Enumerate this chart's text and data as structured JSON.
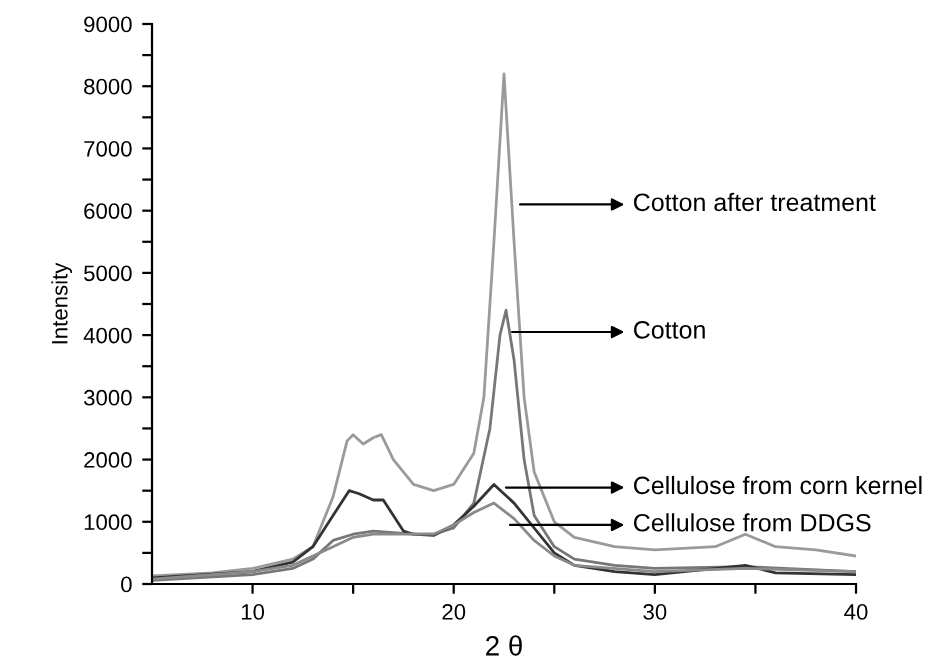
{
  "chart_data": {
    "type": "line",
    "xlabel": "2 θ",
    "ylabel": "Intensity",
    "xlim": [
      5,
      40
    ],
    "ylim": [
      0,
      9000
    ],
    "xticks": [
      10,
      {
        "value": 15,
        "label": null
      },
      20,
      {
        "value": 25,
        "label": null
      },
      30,
      {
        "value": 35,
        "label": null
      },
      40
    ],
    "yticks": [
      0,
      {
        "value": 500,
        "label": null
      },
      1000,
      {
        "value": 1500,
        "label": null
      },
      2000,
      {
        "value": 2500,
        "label": null
      },
      3000,
      {
        "value": 3500,
        "label": null
      },
      4000,
      {
        "value": 4500,
        "label": null
      },
      5000,
      {
        "value": 5500,
        "label": null
      },
      6000,
      {
        "value": 6500,
        "label": null
      },
      7000,
      {
        "value": 7500,
        "label": null
      },
      8000,
      {
        "value": 8500,
        "label": null
      },
      9000
    ],
    "grid": false,
    "marker": "none",
    "line_style": "solid",
    "series": [
      {
        "color": "#9a9a9a",
        "x": [
          5,
          8,
          10,
          12,
          13,
          14,
          14.7,
          15,
          15.5,
          16,
          16.4,
          17,
          18,
          19,
          20,
          21,
          21.5,
          22,
          22.5,
          23,
          23.5,
          24,
          25,
          26,
          28,
          30,
          33,
          34.5,
          36,
          38,
          40
        ],
        "values": [
          130,
          180,
          250,
          400,
          600,
          1400,
          2300,
          2400,
          2250,
          2350,
          2400,
          2000,
          1600,
          1500,
          1600,
          2100,
          3000,
          5500,
          8200,
          5500,
          3000,
          1800,
          1000,
          750,
          600,
          550,
          600,
          800,
          600,
          550,
          450
        ]
      },
      {
        "color": "#777777",
        "x": [
          5,
          10,
          12,
          13,
          14,
          15,
          16,
          18,
          19,
          20,
          21,
          21.8,
          22.3,
          22.6,
          23,
          23.5,
          24,
          25,
          26,
          28,
          30,
          34.5,
          40
        ],
        "values": [
          60,
          150,
          250,
          400,
          700,
          800,
          850,
          800,
          800,
          900,
          1300,
          2500,
          4000,
          4400,
          3600,
          2000,
          1100,
          600,
          400,
          300,
          250,
          280,
          200
        ]
      },
      {
        "color": "#333333",
        "x": [
          5,
          10,
          12,
          13,
          14,
          14.8,
          15.3,
          16,
          16.5,
          17,
          17.5,
          18,
          19,
          20,
          21,
          22,
          23,
          24,
          25,
          26,
          28,
          30,
          34.5,
          36,
          40
        ],
        "values": [
          100,
          200,
          350,
          600,
          1100,
          1500,
          1450,
          1350,
          1350,
          1100,
          850,
          800,
          780,
          950,
          1250,
          1600,
          1300,
          900,
          500,
          300,
          200,
          150,
          300,
          180,
          150
        ]
      },
      {
        "color": "#8a8a8a",
        "x": [
          5,
          10,
          12,
          13,
          14,
          15,
          16,
          17,
          18,
          19,
          20,
          21,
          22,
          23,
          24,
          25,
          26,
          30,
          34.5,
          40
        ],
        "values": [
          80,
          200,
          300,
          450,
          600,
          750,
          800,
          800,
          800,
          800,
          950,
          1150,
          1300,
          1050,
          700,
          450,
          300,
          200,
          250,
          200
        ]
      }
    ],
    "annotations": [
      {
        "text": "Cotton after treatment",
        "x": 23.3,
        "y": 6100
      },
      {
        "text": "Cotton",
        "x": 22.9,
        "y": 4050
      },
      {
        "text": "Cellulose from corn kernel",
        "x": 22.6,
        "y": 1550
      },
      {
        "text": "Cellulose from DDGS",
        "x": 22.8,
        "y": 950
      }
    ]
  }
}
